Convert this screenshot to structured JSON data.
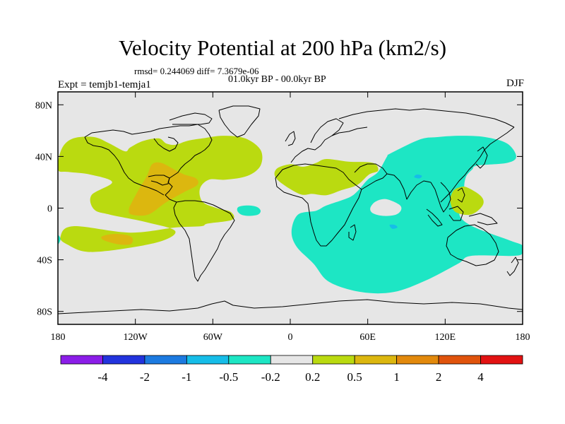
{
  "chart_data": {
    "type": "heatmap",
    "title": "Velocity Potential at 200 hPa (km2/s)",
    "stats": "rmsd= 0.244069 diff= 7.3679e-06",
    "period": "01.0kyr BP - 00.0kyr BP",
    "experiment": "Expt = temjb1-temja1",
    "season": "DJF",
    "xlim": [
      -180,
      180
    ],
    "ylim": [
      -90,
      90
    ],
    "x_ticks": [
      {
        "value": -180,
        "label": "180"
      },
      {
        "value": -120,
        "label": "120W"
      },
      {
        "value": -60,
        "label": "60W"
      },
      {
        "value": 0,
        "label": "0"
      },
      {
        "value": 60,
        "label": "60E"
      },
      {
        "value": 120,
        "label": "120E"
      },
      {
        "value": 180,
        "label": "180"
      }
    ],
    "y_ticks": [
      {
        "value": 80,
        "label": "80N"
      },
      {
        "value": 40,
        "label": "40N"
      },
      {
        "value": 0,
        "label": "0"
      },
      {
        "value": -40,
        "label": "40S"
      },
      {
        "value": -80,
        "label": "80S"
      }
    ],
    "colorbar": {
      "colors": [
        "#8b1de8",
        "#2233dd",
        "#1c7ae0",
        "#16bde8",
        "#1de6c4",
        "#e6e6e6",
        "#bada10",
        "#dcb70f",
        "#e2890c",
        "#e0530c",
        "#e21212"
      ],
      "labels": [
        "-4",
        "-2",
        "-1",
        "-0.5",
        "-0.2",
        "0.2",
        "0.5",
        "1",
        "2",
        "4"
      ]
    },
    "regions": [
      {
        "name": "positive-americas",
        "level": "0.2 to 0.5",
        "color": "#bada10",
        "points": [
          [
            -180,
            30
          ],
          [
            -177,
            46
          ],
          [
            -168,
            54
          ],
          [
            -152,
            55
          ],
          [
            -140,
            50
          ],
          [
            -128,
            44
          ],
          [
            -124,
            47
          ],
          [
            -114,
            52
          ],
          [
            -102,
            54
          ],
          [
            -96,
            50
          ],
          [
            -89,
            49
          ],
          [
            -80,
            52
          ],
          [
            -68,
            54
          ],
          [
            -52,
            56
          ],
          [
            -35,
            54
          ],
          [
            -23,
            45
          ],
          [
            -23,
            33
          ],
          [
            -33,
            25
          ],
          [
            -50,
            22
          ],
          [
            -63,
            22
          ],
          [
            -70,
            15
          ],
          [
            -68,
            5
          ],
          [
            -57,
            0
          ],
          [
            -46,
            -3
          ],
          [
            -45,
            -9
          ],
          [
            -64,
            -12
          ],
          [
            -69,
            -14
          ],
          [
            -89,
            -15
          ],
          [
            -124,
            -19
          ],
          [
            -168,
            -14
          ],
          [
            -178,
            -22
          ],
          [
            -173,
            -28
          ],
          [
            -153,
            -34
          ],
          [
            -105,
            -27
          ],
          [
            -89,
            -18
          ],
          [
            -111,
            -11
          ],
          [
            -140,
            -5
          ],
          [
            -152,
            -1
          ],
          [
            -154,
            10
          ],
          [
            -138,
            20
          ],
          [
            -155,
            26
          ],
          [
            -172,
            28
          ]
        ]
      },
      {
        "name": "positive-americas-core",
        "level": "0.5 to 1",
        "color": "#dcb70f",
        "points": [
          [
            -123,
            4
          ],
          [
            -125,
            -1
          ],
          [
            -123,
            -5
          ],
          [
            -110,
            -5
          ],
          [
            -97,
            4
          ],
          [
            -83,
            12
          ],
          [
            -72,
            18
          ],
          [
            -73,
            23
          ],
          [
            -82,
            26
          ],
          [
            -90,
            30
          ],
          [
            -100,
            35
          ],
          [
            -107,
            34
          ],
          [
            -111,
            25
          ],
          [
            -117,
            15
          ]
        ]
      },
      {
        "name": "positive-south-pacific-core",
        "level": "0.5 to 1",
        "color": "#dcb70f",
        "points": [
          [
            -146,
            -22
          ],
          [
            -144,
            -25
          ],
          [
            -133,
            -28
          ],
          [
            -124,
            -28
          ],
          [
            -122,
            -24
          ],
          [
            -126,
            -21
          ],
          [
            -137,
            -20
          ]
        ]
      },
      {
        "name": "positive-africa-mediterranean",
        "level": "0.2 to 0.5",
        "color": "#bada10",
        "points": [
          [
            -10,
            22
          ],
          [
            -11,
            30
          ],
          [
            0,
            34
          ],
          [
            10,
            32
          ],
          [
            20,
            35
          ],
          [
            28,
            38
          ],
          [
            45,
            36
          ],
          [
            64,
            35
          ],
          [
            68,
            29
          ],
          [
            61,
            26
          ],
          [
            52,
            18
          ],
          [
            40,
            14
          ],
          [
            28,
            10
          ],
          [
            17,
            11
          ],
          [
            7,
            11
          ]
        ]
      },
      {
        "name": "negative-indo-pacific",
        "level": "-0.5 to -0.2",
        "color": "#1de6c4",
        "points": [
          [
            75,
            40
          ],
          [
            77,
            42
          ],
          [
            100,
            53
          ],
          [
            114,
            55
          ],
          [
            132,
            56
          ],
          [
            151,
            55
          ],
          [
            168,
            50
          ],
          [
            175,
            40
          ],
          [
            168,
            35
          ],
          [
            145,
            33
          ],
          [
            141,
            30
          ],
          [
            136,
            24
          ],
          [
            135,
            14
          ],
          [
            140,
            7
          ],
          [
            138,
            2
          ],
          [
            131,
            -5
          ],
          [
            141,
            -14
          ],
          [
            170,
            -25
          ],
          [
            180,
            -29
          ],
          [
            180,
            -35
          ],
          [
            172,
            -37
          ],
          [
            140,
            -37
          ],
          [
            130,
            -43
          ],
          [
            105,
            -56
          ],
          [
            80,
            -65
          ],
          [
            55,
            -65
          ],
          [
            30,
            -57
          ],
          [
            18,
            -43
          ],
          [
            5,
            -30
          ],
          [
            1,
            -18
          ],
          [
            6,
            -5
          ],
          [
            20,
            -2
          ],
          [
            28,
            2
          ],
          [
            45,
            8
          ],
          [
            52,
            13
          ],
          [
            60,
            22
          ],
          [
            68,
            28
          ]
        ]
      },
      {
        "name": "negative-atlantic",
        "level": "-0.5 to -0.2",
        "color": "#1de6c4",
        "points": [
          [
            -40,
            1
          ],
          [
            -33,
            2
          ],
          [
            -26,
            1
          ],
          [
            -23,
            -2
          ],
          [
            -25,
            -5
          ],
          [
            -32,
            -6
          ],
          [
            -38,
            -5
          ],
          [
            -41,
            -2
          ]
        ]
      },
      {
        "name": "negative-west-edge",
        "level": "-0.5 to -0.2",
        "color": "#1de6c4",
        "points": [
          [
            -180,
            -21
          ],
          [
            -178,
            -24
          ],
          [
            -180,
            -28
          ]
        ]
      },
      {
        "name": "positive-indian-ocean-hole",
        "level": "-0.2 to 0.2",
        "color": "#e6e6e6",
        "points": [
          [
            62,
            0
          ],
          [
            66,
            5
          ],
          [
            74,
            7
          ],
          [
            84,
            3
          ],
          [
            86,
            -1
          ],
          [
            82,
            -5
          ],
          [
            72,
            -6
          ],
          [
            64,
            -4
          ]
        ]
      },
      {
        "name": "positive-philippines",
        "level": "0.2 to 0.5",
        "color": "#bada10",
        "points": [
          [
            131,
            16
          ],
          [
            137,
            16
          ],
          [
            148,
            9
          ],
          [
            149,
            2
          ],
          [
            140,
            -5
          ],
          [
            128,
            -3
          ],
          [
            124,
            5
          ],
          [
            126,
            13
          ]
        ]
      },
      {
        "name": "negative-core-1",
        "level": "-1 to -0.5",
        "color": "#16bde8",
        "points": [
          [
            96,
            24
          ],
          [
            98,
            26
          ],
          [
            102,
            25
          ],
          [
            100,
            23
          ]
        ]
      },
      {
        "name": "negative-core-2",
        "level": "-1 to -0.5",
        "color": "#16bde8",
        "points": [
          [
            77,
            -13
          ],
          [
            81,
            -13
          ],
          [
            83,
            -15
          ],
          [
            79,
            -16
          ]
        ]
      }
    ]
  }
}
